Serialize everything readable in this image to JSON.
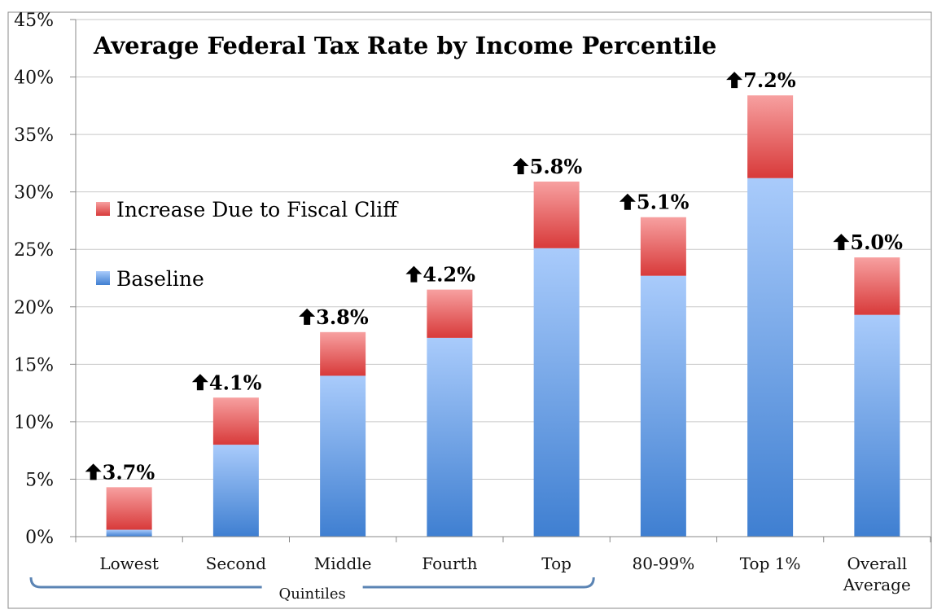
{
  "chart_data": {
    "type": "bar",
    "stacked": true,
    "title": "Average Federal Tax Rate by Income Percentile",
    "categories": [
      "Lowest",
      "Second",
      "Middle",
      "Fourth",
      "Top",
      "80-99%",
      "Top 1%",
      "Overall Average"
    ],
    "series": [
      {
        "name": "Baseline",
        "values": [
          0.6,
          8.0,
          14.0,
          17.3,
          25.1,
          22.7,
          31.2,
          19.3
        ],
        "color": "#4a86d6"
      },
      {
        "name": "Increase Due to Fiscal Cliff",
        "values": [
          3.7,
          4.1,
          3.8,
          4.2,
          5.8,
          5.1,
          7.2,
          5.0
        ],
        "color": "#e04848"
      }
    ],
    "data_labels": [
      "3.7%",
      "4.1%",
      "3.8%",
      "4.2%",
      "5.8%",
      "5.1%",
      "7.2%",
      "5.0%"
    ],
    "y_ticks": [
      "0%",
      "5%",
      "10%",
      "15%",
      "20%",
      "25%",
      "30%",
      "35%",
      "40%",
      "45%"
    ],
    "ylim": [
      0,
      45
    ],
    "grid": true,
    "legend_position": "left",
    "group_bracket": {
      "label": "Quintiles",
      "span": [
        "Lowest",
        "Top"
      ]
    }
  }
}
